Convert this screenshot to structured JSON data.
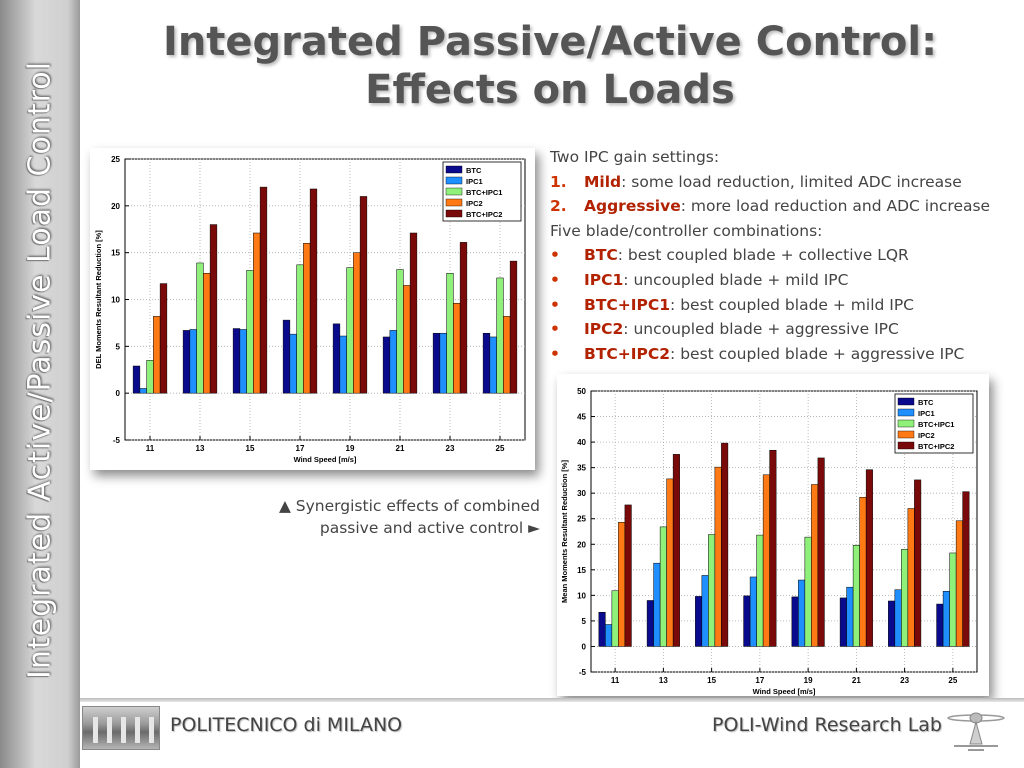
{
  "sidebar": {
    "label": "Integrated Active/Passive Load Control"
  },
  "title": {
    "line1": "Integrated Passive/Active Control:",
    "line2": "Effects on Loads"
  },
  "bullets": {
    "gain_intro": "Two IPC gain settings:",
    "gains": [
      {
        "marker": "1.",
        "keyword": "Mild",
        "text": ": some load reduction, limited ADC increase"
      },
      {
        "marker": "2.",
        "keyword": "Aggressive",
        "text": ": more load reduction and ADC increase"
      }
    ],
    "combo_intro": "Five blade/controller combinations:",
    "combos": [
      {
        "marker": "•",
        "keyword": "BTC",
        "text": ": best coupled blade + collective LQR"
      },
      {
        "marker": "•",
        "keyword": "IPC1",
        "text": ": uncoupled blade + mild IPC"
      },
      {
        "marker": "•",
        "keyword": "BTC+IPC1",
        "text": ": best coupled blade + mild IPC"
      },
      {
        "marker": "•",
        "keyword": "IPC2",
        "text": ": uncoupled blade + aggressive IPC"
      },
      {
        "marker": "•",
        "keyword": "BTC+IPC2",
        "text": ": best coupled blade + aggressive IPC"
      }
    ]
  },
  "caption": {
    "line1": "▲ Synergistic effects of combined",
    "line2": "passive and active control ►"
  },
  "footer": {
    "left": "POLITECNICO di MILANO",
    "right": "POLI-Wind Research Lab"
  },
  "colors": {
    "accent": "#b22200",
    "btc": "#0a0a8c",
    "ipc1": "#1f8fff",
    "btc_ipc1": "#8ff07a",
    "ipc2": "#ff7a14",
    "btc_ipc2": "#7a0a0a"
  },
  "chart_data": [
    {
      "type": "bar",
      "title": "",
      "xlabel": "Wind Speed [m/s]",
      "ylabel": "DEL Moments Resultant Reduction [%]",
      "ylim": [
        -5,
        25
      ],
      "yticks": [
        -5,
        0,
        5,
        10,
        15,
        20,
        25
      ],
      "grid": true,
      "legend_position": "top-right",
      "categories": [
        "11",
        "13",
        "15",
        "17",
        "19",
        "21",
        "23",
        "25"
      ],
      "series": [
        {
          "name": "BTC",
          "color": "#0a0a8c",
          "values": [
            2.9,
            6.7,
            6.9,
            7.8,
            7.4,
            6.0,
            6.4,
            6.4
          ]
        },
        {
          "name": "IPC1",
          "color": "#1f8fff",
          "values": [
            0.5,
            6.8,
            6.8,
            6.3,
            6.1,
            6.7,
            6.4,
            6.0
          ]
        },
        {
          "name": "BTC+IPC1",
          "color": "#8ff07a",
          "values": [
            3.5,
            13.9,
            13.1,
            13.7,
            13.4,
            13.2,
            12.8,
            12.3
          ]
        },
        {
          "name": "IPC2",
          "color": "#ff7a14",
          "values": [
            8.2,
            12.8,
            17.1,
            16.0,
            15.0,
            11.5,
            9.6,
            8.2
          ]
        },
        {
          "name": "BTC+IPC2",
          "color": "#7a0a0a",
          "values": [
            11.7,
            18.0,
            22.0,
            21.8,
            21.0,
            17.1,
            16.1,
            14.1
          ]
        }
      ]
    },
    {
      "type": "bar",
      "title": "",
      "xlabel": "Wind Speed [m/s]",
      "ylabel": "Mean Moments Resultant Reduction [%]",
      "ylim": [
        -5,
        50
      ],
      "yticks": [
        -5,
        0,
        5,
        10,
        15,
        20,
        25,
        30,
        35,
        40,
        45,
        50
      ],
      "grid": true,
      "legend_position": "top-right",
      "categories": [
        "11",
        "13",
        "15",
        "17",
        "19",
        "21",
        "23",
        "25"
      ],
      "series": [
        {
          "name": "BTC",
          "color": "#0a0a8c",
          "values": [
            6.7,
            9.0,
            9.8,
            9.9,
            9.7,
            9.5,
            8.9,
            8.3
          ]
        },
        {
          "name": "IPC1",
          "color": "#1f8fff",
          "values": [
            4.3,
            16.3,
            13.9,
            13.6,
            13.0,
            11.6,
            11.1,
            10.8
          ]
        },
        {
          "name": "BTC+IPC1",
          "color": "#8ff07a",
          "values": [
            10.9,
            23.4,
            21.9,
            21.8,
            21.4,
            19.8,
            19.0,
            18.3
          ]
        },
        {
          "name": "IPC2",
          "color": "#ff7a14",
          "values": [
            24.3,
            32.8,
            35.1,
            33.6,
            31.7,
            29.2,
            27.0,
            24.6
          ]
        },
        {
          "name": "BTC+IPC2",
          "color": "#7a0a0a",
          "values": [
            27.7,
            37.6,
            39.8,
            38.4,
            36.9,
            34.6,
            32.6,
            30.3
          ]
        }
      ]
    }
  ]
}
